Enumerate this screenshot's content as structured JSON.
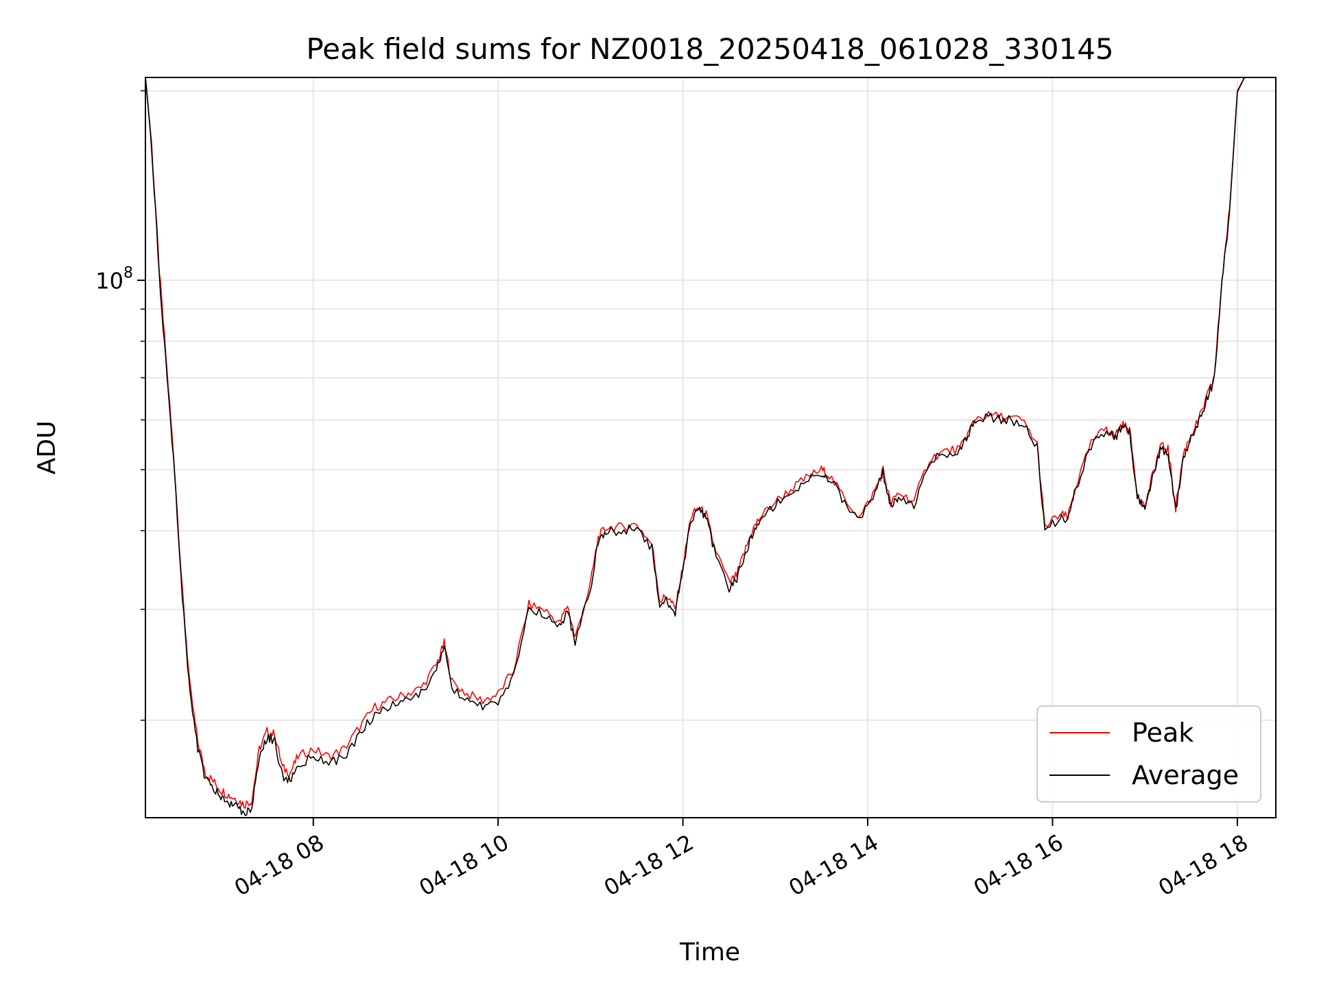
{
  "chart_data": {
    "type": "line",
    "title": "Peak field sums for NZ0018_20250418_061028_330145",
    "xlabel": "Time",
    "ylabel": "ADU",
    "x_scale": "time",
    "y_scale": "log",
    "xlim": [
      "04-18 06:11",
      "04-18 18:25"
    ],
    "ylim": [
      14000000,
      210000000
    ],
    "x_ticks": [
      "04-18 08",
      "04-18 10",
      "04-18 12",
      "04-18 14",
      "04-18 16",
      "04-18 18"
    ],
    "y_ticks": [
      {
        "value": 100000000,
        "base": "10",
        "exp": "8"
      }
    ],
    "y_minor_ticks": [
      20000000,
      30000000,
      40000000,
      50000000,
      60000000,
      70000000,
      80000000,
      90000000,
      200000000
    ],
    "grid": true,
    "legend_position": "lower-right",
    "colors": {
      "peak": "#ff0000",
      "average": "#000000",
      "grid": "#e6e6e6"
    },
    "series": [
      {
        "name": "Peak",
        "color": "#ff0000",
        "x": [
          "04-18 06:11",
          "04-18 06:15",
          "04-18 06:20",
          "04-18 06:25",
          "04-18 06:30",
          "04-18 06:35",
          "04-18 06:40",
          "04-18 06:45",
          "04-18 06:50",
          "04-18 06:55",
          "04-18 07:00",
          "04-18 07:05",
          "04-18 07:10",
          "04-18 07:15",
          "04-18 07:20",
          "04-18 07:25",
          "04-18 07:30",
          "04-18 07:35",
          "04-18 07:40",
          "04-18 07:45",
          "04-18 07:50",
          "04-18 08:00",
          "04-18 08:10",
          "04-18 08:20",
          "04-18 08:30",
          "04-18 08:40",
          "04-18 08:50",
          "04-18 09:00",
          "04-18 09:10",
          "04-18 09:20",
          "04-18 09:25",
          "04-18 09:30",
          "04-18 09:40",
          "04-18 09:50",
          "04-18 10:00",
          "04-18 10:10",
          "04-18 10:20",
          "04-18 10:30",
          "04-18 10:40",
          "04-18 10:45",
          "04-18 10:50",
          "04-18 11:00",
          "04-18 11:05",
          "04-18 11:10",
          "04-18 11:20",
          "04-18 11:30",
          "04-18 11:40",
          "04-18 11:45",
          "04-18 11:50",
          "04-18 11:55",
          "04-18 12:00",
          "04-18 12:05",
          "04-18 12:10",
          "04-18 12:15",
          "04-18 12:20",
          "04-18 12:30",
          "04-18 12:35",
          "04-18 12:40",
          "04-18 12:45",
          "04-18 12:50",
          "04-18 13:00",
          "04-18 13:10",
          "04-18 13:20",
          "04-18 13:30",
          "04-18 13:35",
          "04-18 13:45",
          "04-18 13:55",
          "04-18 14:05",
          "04-18 14:10",
          "04-18 14:15",
          "04-18 14:20",
          "04-18 14:30",
          "04-18 14:40",
          "04-18 14:50",
          "04-18 15:00",
          "04-18 15:05",
          "04-18 15:10",
          "04-18 15:20",
          "04-18 15:30",
          "04-18 15:40",
          "04-18 15:50",
          "04-18 15:55",
          "04-18 16:05",
          "04-18 16:10",
          "04-18 16:15",
          "04-18 16:25",
          "04-18 16:35",
          "04-18 16:40",
          "04-18 16:45",
          "04-18 16:50",
          "04-18 16:55",
          "04-18 17:00",
          "04-18 17:05",
          "04-18 17:10",
          "04-18 17:15",
          "04-18 17:20",
          "04-18 17:25",
          "04-18 17:30",
          "04-18 17:35",
          "04-18 17:40",
          "04-18 17:45",
          "04-18 17:50",
          "04-18 17:55",
          "04-18 18:00",
          "04-18 18:05",
          "04-18 18:10",
          "04-18 18:15",
          "04-18 18:20"
        ],
        "values": [
          211000000,
          165000000,
          104000000,
          72000000,
          50000000,
          32000000,
          22500000,
          18500000,
          16500000,
          16000000,
          15500000,
          15200000,
          15000000,
          14700000,
          14900000,
          18000000,
          19200000,
          19000000,
          16800000,
          16500000,
          17500000,
          18000000,
          17500000,
          18000000,
          19500000,
          21000000,
          21500000,
          22000000,
          22500000,
          24500000,
          26500000,
          23000000,
          22000000,
          21500000,
          22000000,
          24000000,
          30500000,
          30000000,
          28500000,
          30500000,
          27000000,
          33000000,
          39000000,
          40500000,
          40500000,
          41000000,
          38000000,
          31000000,
          31500000,
          30000000,
          35000000,
          42000000,
          43500000,
          42500000,
          38000000,
          33000000,
          34000000,
          37000000,
          40000000,
          42000000,
          44500000,
          46500000,
          48500000,
          50000000,
          49000000,
          45000000,
          42000000,
          46500000,
          50000000,
          44000000,
          46000000,
          44500000,
          52000000,
          53500000,
          54000000,
          57000000,
          60500000,
          61000000,
          60500000,
          60000000,
          55000000,
          40500000,
          42500000,
          42000000,
          47000000,
          55000000,
          58500000,
          56500000,
          59000000,
          58000000,
          46000000,
          43500000,
          49000000,
          54500000,
          54000000,
          43500000,
          53000000,
          57000000,
          60000000,
          65000000,
          70000000,
          100000000,
          130000000,
          200000000,
          211000000,
          211000000,
          211000000,
          211000000
        ]
      },
      {
        "name": "Average",
        "color": "#000000",
        "x": [
          "04-18 06:11",
          "04-18 06:15",
          "04-18 06:20",
          "04-18 06:25",
          "04-18 06:30",
          "04-18 06:35",
          "04-18 06:40",
          "04-18 06:45",
          "04-18 06:50",
          "04-18 06:55",
          "04-18 07:00",
          "04-18 07:05",
          "04-18 07:10",
          "04-18 07:15",
          "04-18 07:20",
          "04-18 07:25",
          "04-18 07:30",
          "04-18 07:35",
          "04-18 07:40",
          "04-18 07:45",
          "04-18 07:50",
          "04-18 08:00",
          "04-18 08:10",
          "04-18 08:20",
          "04-18 08:30",
          "04-18 08:40",
          "04-18 08:50",
          "04-18 09:00",
          "04-18 09:10",
          "04-18 09:20",
          "04-18 09:25",
          "04-18 09:30",
          "04-18 09:40",
          "04-18 09:50",
          "04-18 10:00",
          "04-18 10:10",
          "04-18 10:20",
          "04-18 10:30",
          "04-18 10:40",
          "04-18 10:45",
          "04-18 10:50",
          "04-18 11:00",
          "04-18 11:05",
          "04-18 11:10",
          "04-18 11:20",
          "04-18 11:30",
          "04-18 11:40",
          "04-18 11:45",
          "04-18 11:50",
          "04-18 11:55",
          "04-18 12:00",
          "04-18 12:05",
          "04-18 12:10",
          "04-18 12:15",
          "04-18 12:20",
          "04-18 12:30",
          "04-18 12:35",
          "04-18 12:40",
          "04-18 12:45",
          "04-18 12:50",
          "04-18 13:00",
          "04-18 13:10",
          "04-18 13:20",
          "04-18 13:30",
          "04-18 13:35",
          "04-18 13:45",
          "04-18 13:55",
          "04-18 14:05",
          "04-18 14:10",
          "04-18 14:15",
          "04-18 14:20",
          "04-18 14:30",
          "04-18 14:40",
          "04-18 14:50",
          "04-18 15:00",
          "04-18 15:05",
          "04-18 15:10",
          "04-18 15:20",
          "04-18 15:30",
          "04-18 15:40",
          "04-18 15:50",
          "04-18 15:55",
          "04-18 16:05",
          "04-18 16:10",
          "04-18 16:15",
          "04-18 16:25",
          "04-18 16:35",
          "04-18 16:40",
          "04-18 16:45",
          "04-18 16:50",
          "04-18 16:55",
          "04-18 17:00",
          "04-18 17:05",
          "04-18 17:10",
          "04-18 17:15",
          "04-18 17:20",
          "04-18 17:25",
          "04-18 17:30",
          "04-18 17:35",
          "04-18 17:40",
          "04-18 17:45",
          "04-18 17:50",
          "04-18 17:55",
          "04-18 18:00",
          "04-18 18:05",
          "04-18 18:10",
          "04-18 18:15",
          "04-18 18:20"
        ],
        "values": [
          211000000,
          163000000,
          102000000,
          70500000,
          49000000,
          31300000,
          22000000,
          18000000,
          16100000,
          15600000,
          15100000,
          14800000,
          14600000,
          14300000,
          14500000,
          17600000,
          18800000,
          18500000,
          16300000,
          16000000,
          17000000,
          17500000,
          17000000,
          17500000,
          19000000,
          20500000,
          21000000,
          21500000,
          22000000,
          24000000,
          26000000,
          22500000,
          21500000,
          21000000,
          21500000,
          23500000,
          30000000,
          29500000,
          28000000,
          30000000,
          26500000,
          32500000,
          38500000,
          40000000,
          40000000,
          40500000,
          37500000,
          30500000,
          31000000,
          29500000,
          34500000,
          41500000,
          43000000,
          42000000,
          37500000,
          32500000,
          33500000,
          36500000,
          39500000,
          41500000,
          44000000,
          46000000,
          48000000,
          49500000,
          48500000,
          44500000,
          41500000,
          46000000,
          49500000,
          43500000,
          45500000,
          44000000,
          51500000,
          53000000,
          53500000,
          56500000,
          60000000,
          60500000,
          60000000,
          59500000,
          54500000,
          40000000,
          42000000,
          41500000,
          46500000,
          54500000,
          58000000,
          56000000,
          58500000,
          57500000,
          45500000,
          43000000,
          48500000,
          54000000,
          53500000,
          43000000,
          52500000,
          56500000,
          59500000,
          64500000,
          69500000,
          99000000,
          129000000,
          199000000,
          211000000,
          211000000,
          211000000,
          211000000
        ]
      }
    ]
  }
}
